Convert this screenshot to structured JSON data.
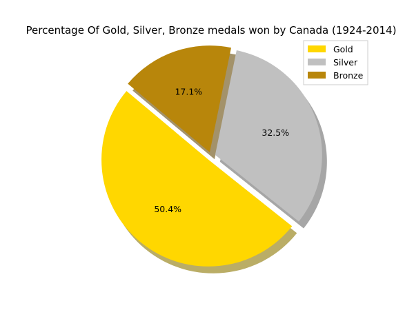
{
  "chart_data": {
    "type": "pie",
    "title": "Percentage Of Gold, Silver, Bronze medals won by Canada (1924-2014)",
    "slices": [
      {
        "label": "Gold",
        "value": 50.4,
        "display": "50.4%",
        "color": "#ffd700"
      },
      {
        "label": "Silver",
        "value": 32.5,
        "display": "32.5%",
        "color": "#c0c0c0"
      },
      {
        "label": "Bronze",
        "value": 17.1,
        "display": "17.1%",
        "color": "#b8860b"
      }
    ],
    "shadow": true,
    "exploded": true,
    "legend": "top-right"
  }
}
